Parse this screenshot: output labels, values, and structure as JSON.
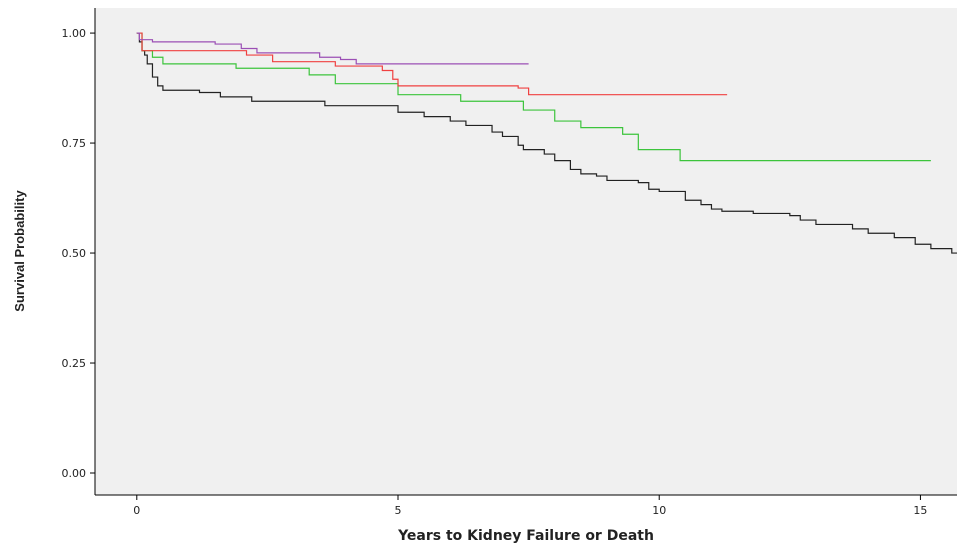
{
  "chart_data": {
    "type": "step",
    "x_label": "Years to Kidney Failure or Death",
    "y_label": "Survival Probability",
    "xlim": [
      -0.8,
      15.7
    ],
    "ylim": [
      -0.05,
      1.057
    ],
    "xticks": [
      0,
      5,
      10,
      15
    ],
    "yticks": [
      {
        "value": 0,
        "label": "0.00"
      },
      {
        "value": 0.25,
        "label": "0.25"
      },
      {
        "value": 0.5,
        "label": "0.50"
      },
      {
        "value": 0.75,
        "label": "0.75"
      },
      {
        "value": 1,
        "label": "1.00"
      }
    ],
    "background": "#f0f0f0",
    "series": [
      {
        "color": "#222222",
        "x": [
          0,
          0.05,
          0.1,
          0.15,
          0.2,
          0.3,
          0.4,
          0.5,
          1.2,
          1.6,
          2.2,
          3.6,
          5.0,
          5.5,
          6.0,
          6.3,
          6.8,
          7.0,
          7.3,
          7.4,
          7.8,
          8.0,
          8.3,
          8.5,
          8.8,
          9.0,
          9.6,
          9.8,
          10.0,
          10.5,
          10.8,
          11.0,
          11.2,
          11.8,
          12.5,
          12.7,
          13.0,
          13.7,
          14.0,
          14.5,
          14.9,
          15.2,
          15.6,
          15.7
        ],
        "values": [
          1.0,
          0.98,
          0.96,
          0.95,
          0.93,
          0.9,
          0.88,
          0.87,
          0.865,
          0.855,
          0.845,
          0.835,
          0.82,
          0.81,
          0.8,
          0.79,
          0.775,
          0.765,
          0.745,
          0.735,
          0.725,
          0.71,
          0.69,
          0.68,
          0.675,
          0.665,
          0.66,
          0.645,
          0.64,
          0.62,
          0.61,
          0.6,
          0.595,
          0.59,
          0.585,
          0.575,
          0.565,
          0.555,
          0.545,
          0.535,
          0.52,
          0.51,
          0.5,
          0.5
        ]
      },
      {
        "color": "#3cc43c",
        "x": [
          0,
          0.1,
          0.3,
          0.5,
          1.9,
          3.3,
          3.8,
          5.0,
          6.2,
          7.4,
          8.0,
          8.5,
          9.3,
          9.6,
          10.4,
          15.2
        ],
        "values": [
          1.0,
          0.96,
          0.945,
          0.93,
          0.92,
          0.905,
          0.885,
          0.86,
          0.845,
          0.825,
          0.8,
          0.785,
          0.77,
          0.735,
          0.71,
          0.71
        ]
      },
      {
        "color": "#f04040",
        "x": [
          0,
          0.1,
          2.1,
          2.6,
          3.8,
          4.7,
          4.9,
          5.0,
          7.3,
          7.5,
          11.3
        ],
        "values": [
          1.0,
          0.96,
          0.95,
          0.935,
          0.925,
          0.915,
          0.895,
          0.88,
          0.875,
          0.86,
          0.86
        ]
      },
      {
        "color": "#9b4fb5",
        "x": [
          0,
          0.05,
          0.3,
          1.5,
          2.0,
          2.3,
          3.5,
          3.9,
          4.2,
          7.5
        ],
        "values": [
          1.0,
          0.985,
          0.98,
          0.975,
          0.965,
          0.955,
          0.945,
          0.94,
          0.93,
          0.93
        ]
      }
    ]
  }
}
